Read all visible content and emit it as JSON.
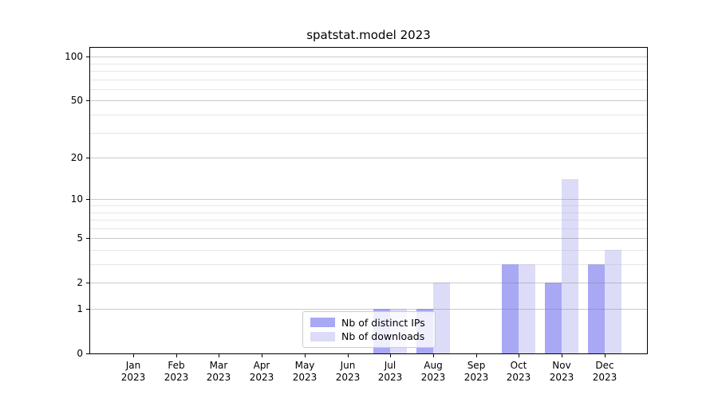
{
  "chart_data": {
    "type": "bar",
    "title": "spatstat.model 2023",
    "categories": [
      "Jan 2023",
      "Feb 2023",
      "Mar 2023",
      "Apr 2023",
      "May 2023",
      "Jun 2023",
      "Jul 2023",
      "Aug 2023",
      "Sep 2023",
      "Oct 2023",
      "Nov 2023",
      "Dec 2023"
    ],
    "series": [
      {
        "name": "Nb of distinct IPs",
        "color": "#a8a8f4",
        "values": [
          0,
          0,
          0,
          0,
          0,
          0,
          1,
          1,
          0,
          3,
          2,
          3
        ]
      },
      {
        "name": "Nb of downloads",
        "color": "#dcdcf8",
        "values": [
          0,
          0,
          0,
          0,
          0,
          0,
          1,
          2,
          0,
          3,
          14,
          4
        ]
      }
    ],
    "xlabel": "",
    "ylabel": "",
    "yscale": "log1p",
    "ylim": [
      0,
      115
    ],
    "yticks": [
      0,
      1,
      2,
      5,
      10,
      20,
      50,
      100
    ],
    "yticks_minor": [
      3,
      4,
      6,
      7,
      8,
      9,
      30,
      40,
      60,
      70,
      80,
      90
    ],
    "grid": "on",
    "legend": {
      "position": "lower center",
      "items": [
        "Nb of distinct IPs",
        "Nb of downloads"
      ]
    },
    "colors": {
      "axis": "#000000",
      "tick_label": "#000000",
      "grid_major": "rgba(128,128,128,0.42)",
      "grid_minor": "rgba(160,160,160,0.25)",
      "legend_border": "#cccccc"
    }
  }
}
